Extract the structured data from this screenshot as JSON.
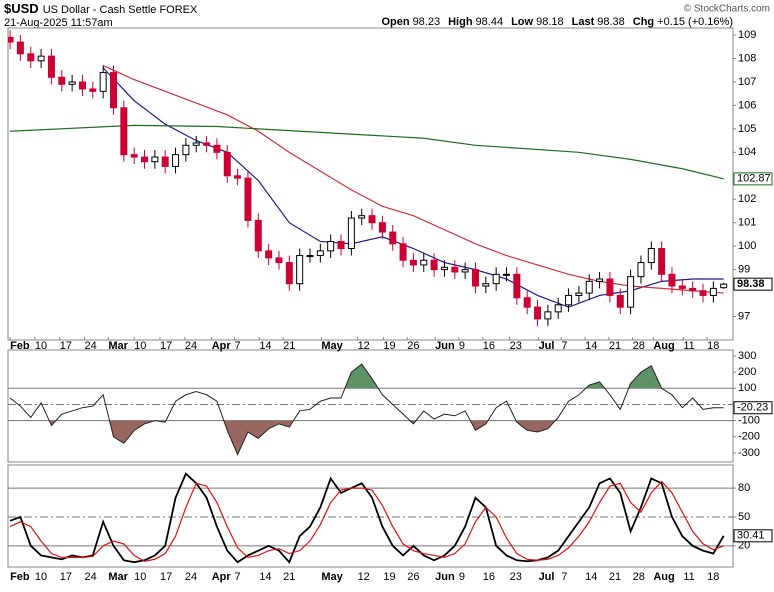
{
  "header": {
    "symbol": "$USD",
    "name": "US Dollar - Cash Settle FOREX",
    "date": "21-Aug-2025 11:57am",
    "quote": [
      {
        "label": "Open",
        "value": "98.23"
      },
      {
        "label": "High",
        "value": "98.44"
      },
      {
        "label": "Low",
        "value": "98.18"
      },
      {
        "label": "Last",
        "value": "98.38"
      },
      {
        "label": "Chg",
        "value": "+0.15 (+0.16%)"
      }
    ],
    "credit": "© StockCharts.com"
  },
  "chart_data": [
    {
      "type": "candlestick",
      "up_color": "#000000",
      "down_color": "#cc0033",
      "last_label": true,
      "x": [
        0,
        1,
        2,
        3,
        4,
        5,
        6,
        7,
        8,
        9,
        10,
        11,
        12,
        13,
        14,
        15,
        16,
        17,
        18,
        19,
        20,
        21,
        22,
        23,
        24,
        25,
        26,
        27,
        28,
        29,
        30,
        31,
        32,
        33,
        34,
        35,
        36,
        37,
        38,
        39,
        40,
        41,
        42,
        43,
        44,
        45,
        46,
        47,
        48,
        49,
        50,
        51,
        52,
        53,
        54,
        55,
        56,
        57,
        58,
        59,
        60,
        61,
        62,
        63,
        64,
        65,
        66,
        67,
        68,
        69
      ],
      "open": [
        108.9,
        108.7,
        108.2,
        107.9,
        108.1,
        107.2,
        106.9,
        107.0,
        106.7,
        106.6,
        107.4,
        105.9,
        103.9,
        103.8,
        103.6,
        103.8,
        103.4,
        103.9,
        104.3,
        104.4,
        104.3,
        104.0,
        103.0,
        102.9,
        101.1,
        99.8,
        99.5,
        99.3,
        98.4,
        99.6,
        99.6,
        99.8,
        100.2,
        99.9,
        101.2,
        101.3,
        101.0,
        100.6,
        100.1,
        99.4,
        99.2,
        99.4,
        99.0,
        99.1,
        98.9,
        99.0,
        98.3,
        98.4,
        98.8,
        98.8,
        97.8,
        97.4,
        96.9,
        97.2,
        97.5,
        97.9,
        98.0,
        98.5,
        98.6,
        97.9,
        97.4,
        98.7,
        99.3,
        99.9,
        98.8,
        98.3,
        98.2,
        98.1,
        97.9,
        98.23
      ],
      "high": [
        109.2,
        109.0,
        108.5,
        108.4,
        108.4,
        107.5,
        107.3,
        107.3,
        107.0,
        107.7,
        107.7,
        106.2,
        104.2,
        104.1,
        104.1,
        104.1,
        104.2,
        104.6,
        104.7,
        104.7,
        104.6,
        104.3,
        103.3,
        103.2,
        101.4,
        100.1,
        99.8,
        99.6,
        99.9,
        99.9,
        100.1,
        100.5,
        100.5,
        101.5,
        101.6,
        101.6,
        101.3,
        100.9,
        100.4,
        99.7,
        99.7,
        99.7,
        99.4,
        99.4,
        99.3,
        99.3,
        98.7,
        99.1,
        99.1,
        99.1,
        98.1,
        97.7,
        97.5,
        97.8,
        98.2,
        98.3,
        98.8,
        98.9,
        98.9,
        98.2,
        99.0,
        99.6,
        100.2,
        100.2,
        99.1,
        98.6,
        98.5,
        98.4,
        98.5,
        98.44
      ],
      "low": [
        108.4,
        107.9,
        107.6,
        107.6,
        106.9,
        106.6,
        106.6,
        106.4,
        106.3,
        106.3,
        105.6,
        103.6,
        103.5,
        103.3,
        103.3,
        103.1,
        103.1,
        103.6,
        104.0,
        104.0,
        103.7,
        102.7,
        102.6,
        100.8,
        99.5,
        99.2,
        99.0,
        98.1,
        98.1,
        99.3,
        99.3,
        99.5,
        99.6,
        99.6,
        100.9,
        100.7,
        100.3,
        99.8,
        99.1,
        98.9,
        98.9,
        98.7,
        98.7,
        98.6,
        98.6,
        98.0,
        98.0,
        98.1,
        98.5,
        97.5,
        97.1,
        96.6,
        96.6,
        96.9,
        97.2,
        97.6,
        97.7,
        98.2,
        97.6,
        97.1,
        97.1,
        98.4,
        99.0,
        98.5,
        98.0,
        97.9,
        97.8,
        97.6,
        97.6,
        98.18
      ],
      "close": [
        108.7,
        108.2,
        107.9,
        108.1,
        107.2,
        106.9,
        107.0,
        106.7,
        106.6,
        107.4,
        105.9,
        103.9,
        103.8,
        103.6,
        103.8,
        103.4,
        103.9,
        104.3,
        104.4,
        104.3,
        104.0,
        103.0,
        102.9,
        101.1,
        99.8,
        99.5,
        99.3,
        98.4,
        99.6,
        99.6,
        99.8,
        100.2,
        99.9,
        101.2,
        101.3,
        101.0,
        100.6,
        100.1,
        99.4,
        99.2,
        99.4,
        99.0,
        99.1,
        98.9,
        99.0,
        98.3,
        98.4,
        98.8,
        98.8,
        97.8,
        97.4,
        96.9,
        97.2,
        97.5,
        97.9,
        98.0,
        98.5,
        98.6,
        97.9,
        97.4,
        98.7,
        99.3,
        99.9,
        98.8,
        98.3,
        98.2,
        98.1,
        97.9,
        98.2,
        98.38
      ],
      "series": [
        {
          "color": "#1a1a8c",
          "x": [
            9,
            12,
            15,
            18,
            21,
            24,
            27,
            30,
            33,
            36,
            39,
            42,
            45,
            48,
            51,
            54,
            57,
            60,
            63,
            66,
            69
          ],
          "values": [
            107.6,
            106.2,
            105.2,
            104.5,
            104.0,
            102.8,
            101.0,
            100.2,
            100.1,
            100.4,
            99.9,
            99.3,
            99.0,
            98.6,
            97.9,
            97.4,
            97.9,
            98.1,
            98.5,
            98.6,
            98.6
          ]
        },
        {
          "color": "#d0303a",
          "x": [
            9,
            12,
            15,
            18,
            21,
            24,
            27,
            30,
            33,
            36,
            39,
            42,
            45,
            48,
            51,
            54,
            57,
            60,
            63,
            66,
            69
          ],
          "values": [
            107.7,
            107.1,
            106.6,
            106.1,
            105.6,
            104.9,
            104.0,
            103.2,
            102.4,
            101.7,
            101.3,
            100.7,
            100.1,
            99.6,
            99.2,
            98.8,
            98.5,
            98.3,
            98.2,
            98.1,
            98.0
          ]
        },
        {
          "color": "#1e6e1e",
          "last_label": true,
          "x": [
            0,
            12,
            20,
            30,
            40,
            45,
            55,
            60,
            65,
            69
          ],
          "values": [
            104.9,
            105.15,
            105.1,
            104.85,
            104.6,
            104.3,
            104.0,
            103.7,
            103.3,
            102.87
          ]
        }
      ],
      "xlim": [
        -0.2,
        69.9
      ],
      "ylim": [
        96,
        109.3
      ],
      "yticks": [
        97,
        99,
        100,
        101,
        102,
        104,
        105,
        106,
        107,
        108,
        109
      ],
      "xticks": [
        {
          "value": 0,
          "label": "Feb"
        },
        {
          "value": 2.4,
          "label": "10"
        },
        {
          "value": 4.8,
          "label": "17"
        },
        {
          "value": 7.2,
          "label": "24"
        },
        {
          "value": 9.5,
          "label": "Mar"
        },
        {
          "value": 12.0,
          "label": "10"
        },
        {
          "value": 14.5,
          "label": "17"
        },
        {
          "value": 16.9,
          "label": "24"
        },
        {
          "value": 19.5,
          "label": "Apr"
        },
        {
          "value": 21.7,
          "label": "7"
        },
        {
          "value": 24.1,
          "label": "14"
        },
        {
          "value": 26.4,
          "label": "21"
        },
        {
          "value": 30.1,
          "label": "May"
        },
        {
          "value": 33.6,
          "label": "12"
        },
        {
          "value": 36.1,
          "label": "19"
        },
        {
          "value": 38.4,
          "label": "26"
        },
        {
          "value": 41.1,
          "label": "Jun"
        },
        {
          "value": 43.4,
          "label": "9"
        },
        {
          "value": 45.7,
          "label": "16"
        },
        {
          "value": 48.3,
          "label": "23"
        },
        {
          "value": 51.1,
          "label": "Jul"
        },
        {
          "value": 53.3,
          "label": "7"
        },
        {
          "value": 55.6,
          "label": "14"
        },
        {
          "value": 57.9,
          "label": "21"
        },
        {
          "value": 60.2,
          "label": "28"
        },
        {
          "value": 62.2,
          "label": "Aug"
        },
        {
          "value": 65.1,
          "label": "11"
        },
        {
          "value": 67.4,
          "label": "18"
        }
      ]
    },
    {
      "type": "line",
      "color": "#222222",
      "fill_above_color": "#5e9266",
      "fill_below_color": "#9a6660",
      "last_label": true,
      "x": [
        0,
        1,
        2,
        3,
        4,
        5,
        6,
        7,
        8,
        9,
        10,
        11,
        12,
        13,
        14,
        15,
        16,
        17,
        18,
        19,
        20,
        21,
        22,
        23,
        24,
        25,
        26,
        27,
        28,
        29,
        30,
        31,
        32,
        33,
        34,
        35,
        36,
        37,
        38,
        39,
        40,
        41,
        42,
        43,
        44,
        45,
        46,
        47,
        48,
        49,
        50,
        51,
        52,
        53,
        54,
        55,
        56,
        57,
        58,
        59,
        60,
        61,
        62,
        63,
        64,
        65,
        66,
        67,
        68,
        69
      ],
      "values": [
        40,
        -10,
        -80,
        10,
        -130,
        -60,
        -40,
        -20,
        -10,
        60,
        -200,
        -240,
        -160,
        -120,
        -100,
        -110,
        20,
        60,
        80,
        60,
        20,
        -160,
        -310,
        -170,
        -210,
        -150,
        -120,
        -140,
        -40,
        -30,
        20,
        40,
        40,
        200,
        250,
        160,
        60,
        0,
        -60,
        -120,
        -40,
        -90,
        -60,
        -70,
        -40,
        -160,
        -120,
        -20,
        20,
        -110,
        -160,
        -170,
        -150,
        -80,
        20,
        60,
        120,
        140,
        60,
        -30,
        130,
        200,
        240,
        100,
        60,
        -20,
        40,
        -30,
        -20,
        -20.23
      ],
      "xlim": [
        -0.2,
        69.9
      ],
      "ylim": [
        -356,
        337
      ],
      "yticks": [
        300,
        200,
        100,
        -100,
        -200,
        -300
      ],
      "hlines": [
        100,
        -100
      ],
      "dashline": 0
    },
    {
      "type": "line",
      "last_label": true,
      "x": [
        0,
        1,
        2,
        3,
        4,
        5,
        6,
        7,
        8,
        9,
        10,
        11,
        12,
        13,
        14,
        15,
        16,
        17,
        18,
        19,
        20,
        21,
        22,
        23,
        24,
        25,
        26,
        27,
        28,
        29,
        30,
        31,
        32,
        33,
        34,
        35,
        36,
        37,
        38,
        39,
        40,
        41,
        42,
        43,
        44,
        45,
        46,
        47,
        48,
        49,
        50,
        51,
        52,
        53,
        54,
        55,
        56,
        57,
        58,
        59,
        60,
        61,
        62,
        63,
        64,
        65,
        66,
        67,
        68,
        69
      ],
      "series": [
        {
          "color": "#000000",
          "values": [
            46,
            50,
            20,
            10,
            8,
            6,
            10,
            8,
            10,
            45,
            20,
            5,
            3,
            5,
            10,
            20,
            70,
            95,
            85,
            70,
            40,
            15,
            3,
            10,
            15,
            20,
            15,
            3,
            30,
            40,
            60,
            90,
            75,
            80,
            85,
            70,
            40,
            20,
            10,
            20,
            10,
            5,
            10,
            20,
            40,
            70,
            60,
            20,
            10,
            5,
            4,
            5,
            8,
            15,
            30,
            45,
            60,
            85,
            90,
            75,
            35,
            60,
            90,
            85,
            50,
            30,
            20,
            15,
            12,
            30.41
          ]
        },
        {
          "color": "#dd1111",
          "values": [
            40,
            45,
            40,
            25,
            12,
            8,
            8,
            8,
            9,
            20,
            25,
            22,
            10,
            4,
            6,
            12,
            30,
            60,
            85,
            82,
            65,
            40,
            18,
            8,
            10,
            15,
            17,
            12,
            15,
            25,
            42,
            65,
            78,
            80,
            80,
            78,
            62,
            40,
            22,
            15,
            12,
            10,
            8,
            12,
            22,
            45,
            60,
            50,
            28,
            12,
            6,
            5,
            6,
            10,
            18,
            30,
            45,
            65,
            82,
            85,
            65,
            55,
            75,
            87,
            75,
            55,
            35,
            22,
            16,
            20
          ]
        }
      ],
      "xlim": [
        -0.2,
        69.9
      ],
      "ylim": [
        -2,
        104
      ],
      "yticks": [
        20,
        50,
        80
      ],
      "hlines": [
        20,
        80
      ],
      "dashline": 50
    }
  ]
}
